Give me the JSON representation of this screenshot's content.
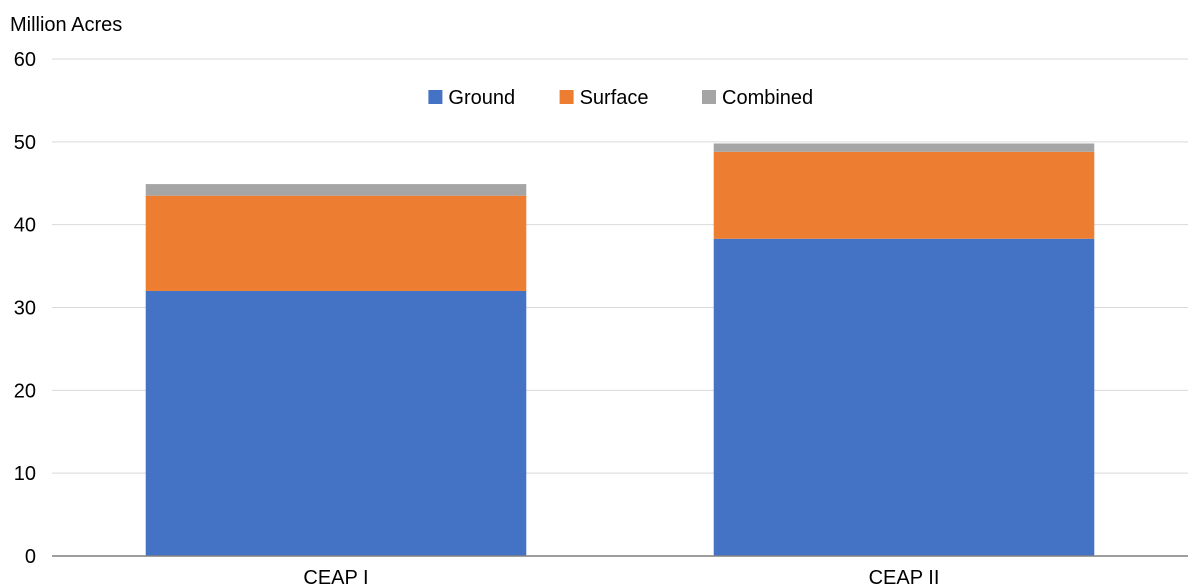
{
  "chart_data": {
    "type": "bar",
    "stacked": true,
    "categories": [
      "CEAP I",
      "CEAP II"
    ],
    "series": [
      {
        "name": "Ground",
        "color": "#4472C4",
        "values": [
          32.0,
          38.3
        ]
      },
      {
        "name": "Surface",
        "color": "#ED7D31",
        "values": [
          11.5,
          10.5
        ]
      },
      {
        "name": "Combined",
        "color": "#A5A5A5",
        "values": [
          1.4,
          1.0
        ]
      }
    ],
    "ylabel": "Million Acres",
    "ylim": [
      0,
      60
    ],
    "yticks": [
      0,
      10,
      20,
      30,
      40,
      50,
      60
    ],
    "grid": true,
    "legend_position": "top-center"
  }
}
